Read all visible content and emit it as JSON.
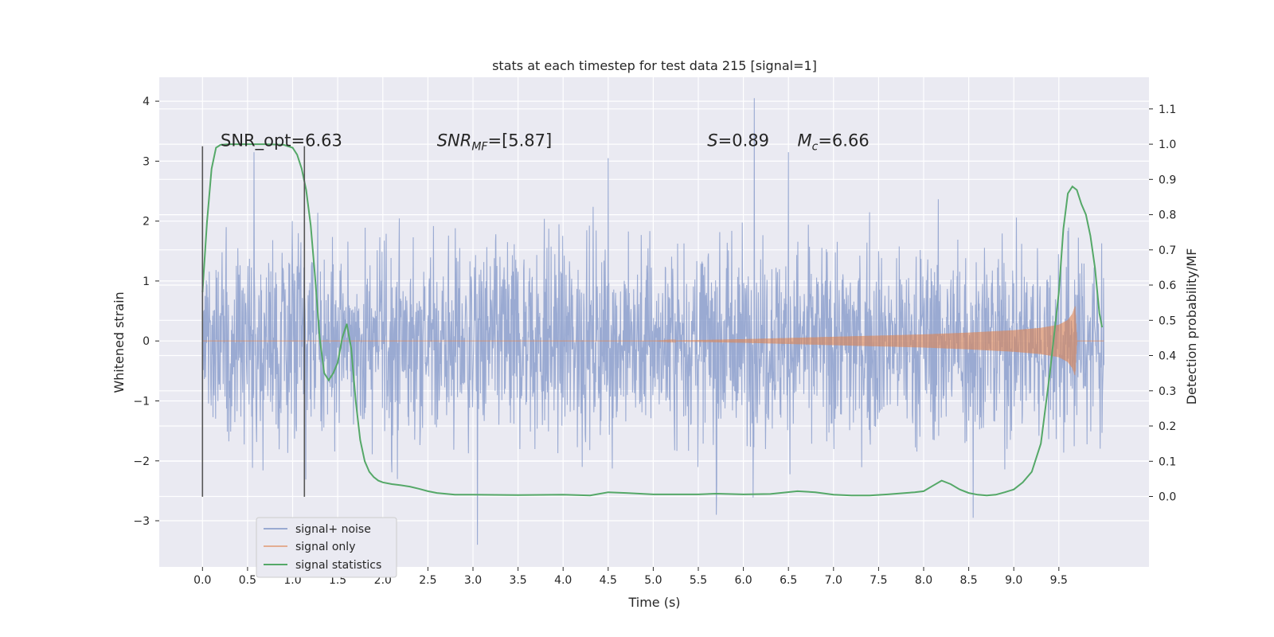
{
  "chart_data": {
    "type": "line",
    "title": "stats at each timestep for test data 215 [signal=1]",
    "xlabel": "Time (s)",
    "ylabel": "Whitened strain",
    "y2label": "Detection probability/MF",
    "xlim": [
      -0.48,
      10.5
    ],
    "ylim": [
      -3.77,
      4.4
    ],
    "y2lim": [
      -0.2,
      1.19
    ],
    "x_ticks": [
      0.0,
      0.5,
      1.0,
      1.5,
      2.0,
      2.5,
      3.0,
      3.5,
      4.0,
      4.5,
      5.0,
      5.5,
      6.0,
      6.5,
      7.0,
      7.5,
      8.0,
      8.5,
      9.0,
      9.5
    ],
    "x_tick_labels": [
      "0.0",
      "0.5",
      "1.0",
      "1.5",
      "2.0",
      "2.5",
      "3.0",
      "3.5",
      "4.0",
      "4.5",
      "5.0",
      "5.5",
      "6.0",
      "6.5",
      "7.0",
      "7.5",
      "8.0",
      "8.5",
      "9.0",
      "9.5"
    ],
    "y_ticks": [
      4,
      3,
      2,
      1,
      0,
      -1,
      -2,
      -3
    ],
    "y_tick_labels": [
      "4",
      "3",
      "2",
      "1",
      "0",
      "−1",
      "−2",
      "−3"
    ],
    "y2_ticks": [
      1.1,
      1.0,
      0.9,
      0.8,
      0.7,
      0.6,
      0.5,
      0.4,
      0.3,
      0.2,
      0.1,
      0.0
    ],
    "y2_tick_labels": [
      "1.1",
      "1.0",
      "0.9",
      "0.8",
      "0.7",
      "0.6",
      "0.5",
      "0.4",
      "0.3",
      "0.2",
      "0.1",
      "0.0"
    ],
    "grid": true,
    "legend_position": "lower-left",
    "series": [
      {
        "name": "signal+ noise",
        "color": "#8c9fcc",
        "axis": "left",
        "kind": "noise",
        "x_range": [
          0.0,
          10.0
        ],
        "typical_envelope": [
          -1.5,
          1.5
        ],
        "extremes": [
          [
            0.57,
            3.15
          ],
          [
            4.5,
            3.05
          ],
          [
            6.12,
            4.05
          ],
          [
            6.5,
            3.15
          ],
          [
            3.05,
            -3.4
          ],
          [
            8.55,
            -2.95
          ],
          [
            5.7,
            -2.9
          ]
        ]
      },
      {
        "name": "signal only",
        "color": "#dd8452",
        "axis": "left",
        "kind": "chirp",
        "x": [
          0.0,
          5.0,
          6.0,
          7.0,
          8.0,
          8.5,
          9.0,
          9.3,
          9.5,
          9.6,
          9.65,
          9.68,
          9.7
        ],
        "amplitude": [
          0.0,
          0.0,
          0.03,
          0.07,
          0.11,
          0.14,
          0.18,
          0.22,
          0.27,
          0.35,
          0.45,
          0.58,
          0.0
        ]
      },
      {
        "name": "signal statistics",
        "color": "#55a868",
        "axis": "right",
        "x": [
          0.0,
          0.05,
          0.1,
          0.15,
          0.2,
          0.3,
          0.5,
          0.7,
          0.9,
          1.0,
          1.05,
          1.1,
          1.15,
          1.2,
          1.25,
          1.3,
          1.35,
          1.4,
          1.45,
          1.5,
          1.55,
          1.6,
          1.65,
          1.7,
          1.75,
          1.8,
          1.85,
          1.9,
          1.95,
          2.0,
          2.1,
          2.2,
          2.3,
          2.4,
          2.5,
          2.6,
          2.8,
          3.0,
          3.5,
          4.0,
          4.3,
          4.5,
          4.7,
          5.0,
          5.5,
          5.7,
          6.0,
          6.3,
          6.6,
          6.8,
          7.0,
          7.2,
          7.4,
          7.6,
          7.8,
          7.9,
          8.0,
          8.1,
          8.2,
          8.3,
          8.4,
          8.5,
          8.6,
          8.7,
          8.8,
          8.9,
          9.0,
          9.1,
          9.2,
          9.3,
          9.4,
          9.5,
          9.55,
          9.6,
          9.65,
          9.7,
          9.75,
          9.8,
          9.85,
          9.9,
          9.95,
          9.98
        ],
        "y": [
          0.58,
          0.78,
          0.93,
          0.99,
          0.998,
          1.0,
          1.0,
          1.0,
          0.998,
          0.99,
          0.97,
          0.93,
          0.87,
          0.77,
          0.62,
          0.45,
          0.35,
          0.33,
          0.35,
          0.38,
          0.45,
          0.49,
          0.42,
          0.27,
          0.16,
          0.1,
          0.07,
          0.055,
          0.045,
          0.04,
          0.035,
          0.032,
          0.028,
          0.022,
          0.015,
          0.01,
          0.005,
          0.005,
          0.004,
          0.005,
          0.003,
          0.012,
          0.01,
          0.006,
          0.006,
          0.008,
          0.006,
          0.007,
          0.015,
          0.012,
          0.005,
          0.003,
          0.003,
          0.006,
          0.01,
          0.012,
          0.015,
          0.03,
          0.045,
          0.035,
          0.02,
          0.01,
          0.005,
          0.003,
          0.005,
          0.012,
          0.02,
          0.04,
          0.07,
          0.15,
          0.35,
          0.58,
          0.76,
          0.86,
          0.88,
          0.87,
          0.83,
          0.8,
          0.74,
          0.65,
          0.52,
          0.48
        ]
      }
    ],
    "vertical_markers": [
      {
        "x": 0.0,
        "y_range": [
          -2.6,
          3.25
        ]
      },
      {
        "x": 1.13,
        "y_range": [
          -2.6,
          3.25
        ]
      }
    ],
    "annotations": [
      {
        "text": "SNR_opt=6.63",
        "x": 0.2,
        "y": 3.25
      },
      {
        "text": "SNR_MF=[5.87]",
        "x": 2.6,
        "y": 3.25
      },
      {
        "text": "S=0.89",
        "x": 5.6,
        "y": 3.25
      },
      {
        "text": "M_c=6.66",
        "x": 6.6,
        "y": 3.25
      }
    ]
  }
}
